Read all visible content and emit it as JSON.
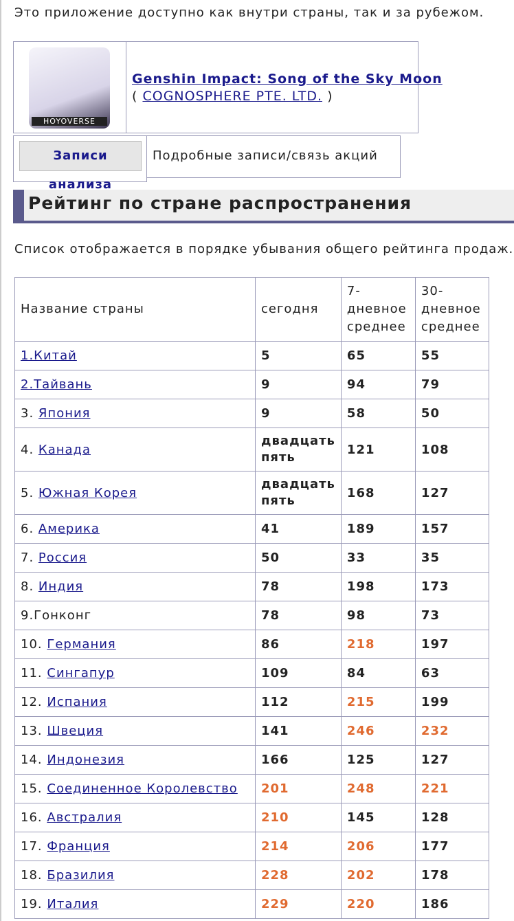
{
  "intro": "Это приложение доступно как внутри страны, так и за рубежом.",
  "app": {
    "logo_text": "HOYOVERSE",
    "title": "Genshin Impact: Song of the Sky Moon",
    "publisher_open": "(",
    "publisher": "COGNOSPHERE PTE. LTD.",
    "publisher_close": ")"
  },
  "tabs": {
    "button": "Записи анализа приложений",
    "link": "Подробные записи/связь акций"
  },
  "section": {
    "title": "Рейтинг по стране распространения",
    "description": "Список отображается в порядке убывания общего рейтинга продаж."
  },
  "table": {
    "header": [
      "Название страны",
      "сегодня",
      "7-дневное среднее",
      "30-дневное среднее"
    ],
    "rows": [
      {
        "country": "1.Китай",
        "link": true,
        "values": [
          "5",
          "65",
          "55"
        ],
        "highlight": [
          false,
          false,
          false
        ]
      },
      {
        "country": "2.Тайвань",
        "link": true,
        "values": [
          "9",
          "94",
          "79"
        ],
        "highlight": [
          false,
          false,
          false
        ]
      },
      {
        "prefix": "3.",
        "country": "Япония",
        "link": true,
        "values": [
          "9",
          "58",
          "50"
        ],
        "highlight": [
          false,
          false,
          false
        ]
      },
      {
        "prefix": "4.",
        "country": "Канада",
        "link": true,
        "values": [
          "двадцать пять",
          "121",
          "108"
        ],
        "highlight": [
          false,
          false,
          false
        ]
      },
      {
        "prefix": "5.",
        "country": "Южная Корея",
        "link": true,
        "values": [
          "двадцать пять",
          "168",
          "127"
        ],
        "highlight": [
          false,
          false,
          false
        ]
      },
      {
        "prefix": "6.",
        "country": "Америка",
        "link": true,
        "values": [
          "41",
          "189",
          "157"
        ],
        "highlight": [
          false,
          false,
          false
        ]
      },
      {
        "prefix": "7.",
        "country": "Россия",
        "link": true,
        "values": [
          "50",
          "33",
          "35"
        ],
        "highlight": [
          false,
          false,
          false
        ]
      },
      {
        "prefix": "8.",
        "country": "Индия",
        "link": true,
        "values": [
          "78",
          "198",
          "173"
        ],
        "highlight": [
          false,
          false,
          false
        ]
      },
      {
        "country": "9.Гонконг",
        "link": false,
        "values": [
          "78",
          "98",
          "73"
        ],
        "highlight": [
          false,
          false,
          false
        ]
      },
      {
        "prefix": "10.",
        "country": "Германия",
        "link": true,
        "values": [
          "86",
          "218",
          "197"
        ],
        "highlight": [
          false,
          true,
          false
        ]
      },
      {
        "prefix": "11.",
        "country": "Сингапур",
        "link": true,
        "values": [
          "109",
          "84",
          "63"
        ],
        "highlight": [
          false,
          false,
          false
        ]
      },
      {
        "prefix": "12.",
        "country": "Испания",
        "link": true,
        "values": [
          "112",
          "215",
          "199"
        ],
        "highlight": [
          false,
          true,
          false
        ]
      },
      {
        "prefix": "13.",
        "country": "Швеция",
        "link": true,
        "values": [
          "141",
          "246",
          "232"
        ],
        "highlight": [
          false,
          true,
          true
        ]
      },
      {
        "prefix": "14.",
        "country": "Индонезия",
        "link": true,
        "values": [
          "166",
          "125",
          "127"
        ],
        "highlight": [
          false,
          false,
          false
        ]
      },
      {
        "prefix": "15.",
        "country": "Соединенное Королевство",
        "link": true,
        "values": [
          "201",
          "248",
          "221"
        ],
        "highlight": [
          true,
          true,
          true
        ]
      },
      {
        "prefix": "16.",
        "country": "Австралия",
        "link": true,
        "values": [
          "210",
          "145",
          "128"
        ],
        "highlight": [
          true,
          false,
          false
        ]
      },
      {
        "prefix": "17.",
        "country": "Франция",
        "link": true,
        "values": [
          "214",
          "206",
          "177"
        ],
        "highlight": [
          true,
          true,
          false
        ]
      },
      {
        "prefix": "18.",
        "country": "Бразилия",
        "link": true,
        "values": [
          "228",
          "202",
          "178"
        ],
        "highlight": [
          true,
          true,
          false
        ]
      },
      {
        "prefix": "19.",
        "country": "Италия",
        "link": true,
        "values": [
          "229",
          "220",
          "186"
        ],
        "highlight": [
          true,
          true,
          false
        ]
      }
    ]
  }
}
